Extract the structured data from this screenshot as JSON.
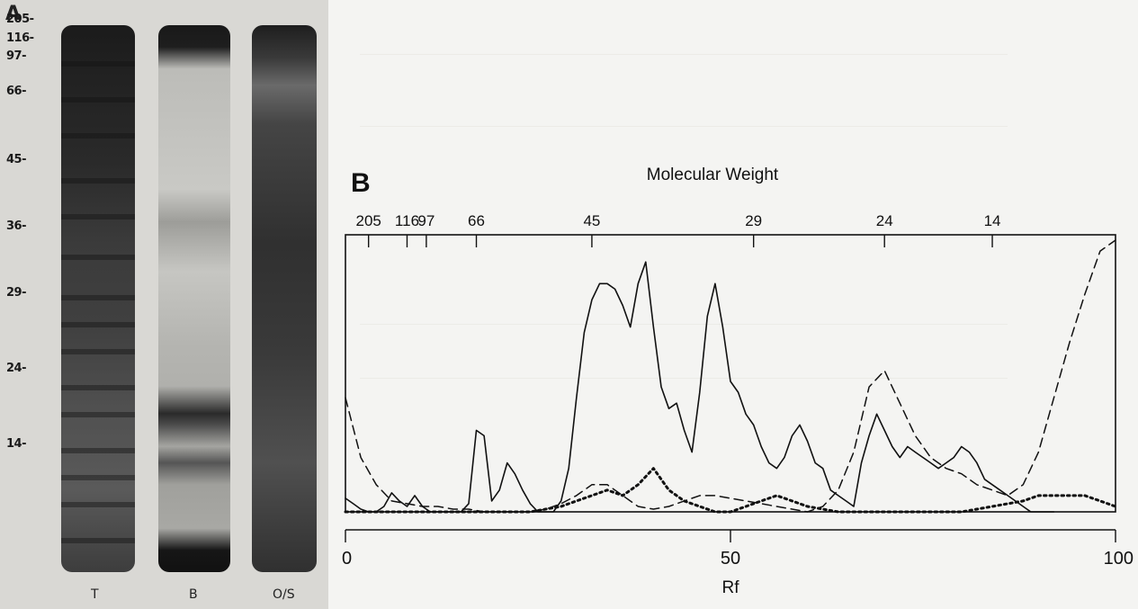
{
  "panel_a": {
    "letter": "A",
    "mw_markers": [
      {
        "label": "205-"
      },
      {
        "label": "116-"
      },
      {
        "label": "97-"
      },
      {
        "label": "66-"
      },
      {
        "label": "45-"
      },
      {
        "label": "36-"
      },
      {
        "label": "29-"
      },
      {
        "label": "24-"
      },
      {
        "label": "14-"
      }
    ],
    "lanes": [
      {
        "label": "T"
      },
      {
        "label": "B"
      },
      {
        "label": "O/S"
      }
    ]
  },
  "panel_b": {
    "letter": "B",
    "top_axis_title": "Molecular Weight",
    "top_axis_ticks": [
      {
        "label": "205",
        "rf": 3
      },
      {
        "label": "116",
        "rf": 8
      },
      {
        "label": "97",
        "rf": 10.5
      },
      {
        "label": "66",
        "rf": 17
      },
      {
        "label": "45",
        "rf": 32
      },
      {
        "label": "29",
        "rf": 53
      },
      {
        "label": "24",
        "rf": 70
      },
      {
        "label": "14",
        "rf": 84
      }
    ],
    "bottom_axis_title": "Rf",
    "bottom_axis_ticks": [
      {
        "label": "0",
        "rf": 0
      },
      {
        "label": "50",
        "rf": 50
      },
      {
        "label": "100",
        "rf": 100
      }
    ]
  },
  "chart_data": {
    "type": "line",
    "xlabel": "Rf",
    "x2label": "Molecular Weight",
    "xlim": [
      0,
      100
    ],
    "ylim": [
      0,
      100
    ],
    "grid": false,
    "series": [
      {
        "style": "solid",
        "color": "#111111",
        "x": [
          0,
          1,
          2,
          3,
          4,
          5,
          6,
          7,
          8,
          9,
          10,
          11,
          12,
          13,
          14,
          15,
          16,
          17,
          18,
          19,
          20,
          21,
          22,
          23,
          24,
          25,
          26,
          27,
          28,
          29,
          30,
          31,
          32,
          33,
          34,
          35,
          36,
          37,
          38,
          39,
          40,
          41,
          42,
          43,
          44,
          45,
          46,
          47,
          48,
          49,
          50,
          51,
          52,
          53,
          54,
          55,
          56,
          57,
          58,
          59,
          60,
          61,
          62,
          63,
          64,
          65,
          66,
          67,
          68,
          69,
          70,
          71,
          72,
          73,
          74,
          75,
          76,
          77,
          78,
          79,
          80,
          81,
          82,
          83,
          84,
          85,
          86,
          87,
          88,
          89,
          90,
          91,
          92
        ],
        "y": [
          5,
          3,
          1,
          0,
          0,
          2,
          7,
          4,
          2,
          6,
          2,
          0,
          0,
          0,
          0,
          0,
          3,
          30,
          28,
          4,
          8,
          18,
          14,
          8,
          3,
          0,
          0,
          0,
          4,
          16,
          42,
          66,
          78,
          84,
          84,
          82,
          76,
          68,
          84,
          92,
          68,
          46,
          38,
          40,
          30,
          22,
          44,
          72,
          84,
          68,
          48,
          44,
          36,
          32,
          24,
          18,
          16,
          20,
          28,
          32,
          26,
          18,
          16,
          8,
          6,
          4,
          2,
          18,
          28,
          36,
          30,
          24,
          20,
          24,
          22,
          20,
          18,
          16,
          18,
          20,
          24,
          22,
          18,
          12,
          10,
          8,
          6,
          4,
          2,
          0,
          0,
          0,
          0
        ]
      },
      {
        "style": "dashed",
        "color": "#111111",
        "x": [
          0,
          2,
          4,
          6,
          8,
          10,
          12,
          14,
          16,
          18,
          20,
          22,
          24,
          26,
          28,
          30,
          32,
          34,
          36,
          38,
          40,
          42,
          44,
          46,
          48,
          50,
          52,
          54,
          56,
          58,
          60,
          62,
          64,
          66,
          68,
          70,
          72,
          74,
          76,
          78,
          80,
          82,
          84,
          86,
          88,
          90,
          92,
          94,
          96,
          98,
          100
        ],
        "y": [
          42,
          20,
          10,
          4,
          3,
          2,
          2,
          1,
          1,
          0,
          0,
          0,
          0,
          1,
          3,
          6,
          10,
          10,
          6,
          2,
          1,
          2,
          4,
          6,
          6,
          5,
          4,
          3,
          2,
          1,
          0,
          2,
          8,
          22,
          46,
          52,
          40,
          28,
          20,
          16,
          14,
          10,
          8,
          6,
          10,
          22,
          42,
          62,
          80,
          96,
          100
        ]
      },
      {
        "style": "dotted",
        "color": "#111111",
        "x": [
          0,
          4,
          8,
          12,
          16,
          20,
          24,
          28,
          30,
          32,
          34,
          36,
          38,
          40,
          42,
          44,
          46,
          48,
          50,
          52,
          54,
          56,
          58,
          60,
          64,
          68,
          72,
          76,
          80,
          84,
          88,
          90,
          92,
          94,
          96,
          98,
          100
        ],
        "y": [
          0,
          0,
          0,
          0,
          0,
          0,
          0,
          2,
          4,
          6,
          8,
          6,
          10,
          16,
          8,
          4,
          2,
          0,
          0,
          2,
          4,
          6,
          4,
          2,
          0,
          0,
          0,
          0,
          0,
          2,
          4,
          6,
          6,
          6,
          6,
          4,
          2
        ]
      }
    ]
  }
}
